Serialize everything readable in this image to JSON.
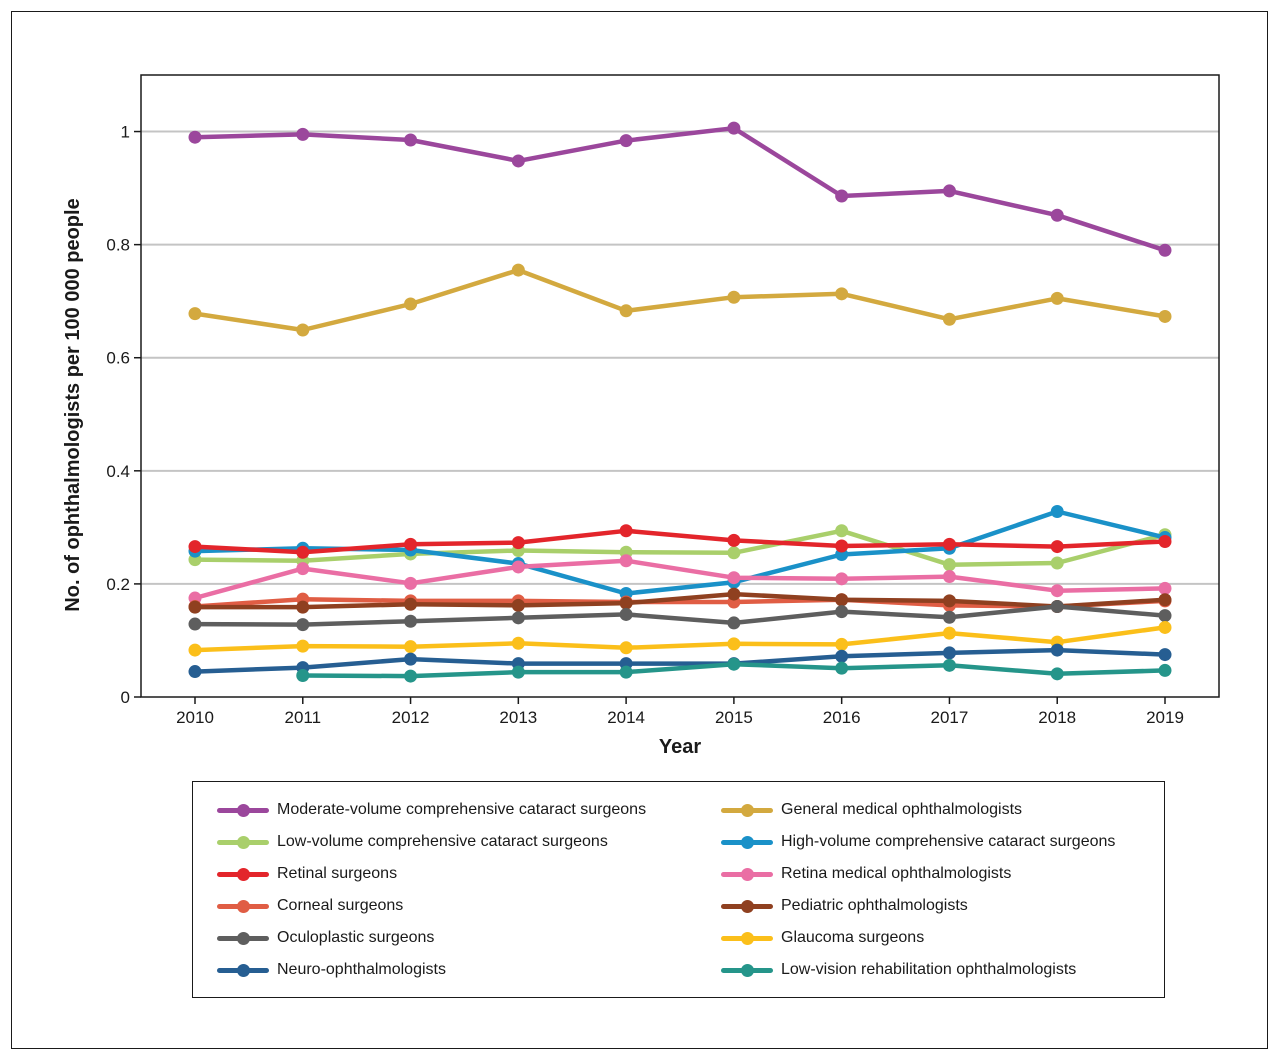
{
  "chart_data": {
    "type": "line",
    "title": "",
    "xlabel": "Year",
    "ylabel": "No. of ophthalmologists per 100 000 people",
    "ylim": [
      0,
      1.1
    ],
    "yticks": [
      0,
      0.2,
      0.4,
      0.6,
      0.8,
      1
    ],
    "ytick_labels": [
      "0",
      "0.2",
      "0.4",
      "0.6",
      "0.8",
      "1"
    ],
    "grid": true,
    "legend_position": "bottom",
    "x": [
      "2010",
      "2011",
      "2012",
      "2013",
      "2014",
      "2015",
      "2016",
      "2017",
      "2018",
      "2019"
    ],
    "series": [
      {
        "name": "Moderate-volume comprehensive cataract surgeons",
        "color": "#9b479c",
        "values": [
          0.99,
          0.995,
          0.985,
          0.948,
          0.984,
          1.006,
          0.886,
          0.895,
          0.852,
          0.79
        ]
      },
      {
        "name": "General medical ophthalmologists",
        "color": "#d3a93f",
        "values": [
          0.678,
          0.649,
          0.695,
          0.755,
          0.683,
          0.707,
          0.713,
          0.668,
          0.705,
          0.673
        ]
      },
      {
        "name": "Low-volume comprehensive cataract surgeons",
        "color": "#a9cf6b",
        "values": [
          0.243,
          0.241,
          0.253,
          0.259,
          0.256,
          0.255,
          0.294,
          0.234,
          0.237,
          0.287
        ]
      },
      {
        "name": "High-volume comprehensive cataract surgeons",
        "color": "#1a91c8",
        "values": [
          0.258,
          0.263,
          0.26,
          0.236,
          0.183,
          0.203,
          0.252,
          0.263,
          0.328,
          0.282
        ]
      },
      {
        "name": "Retinal surgeons",
        "color": "#e3252b",
        "values": [
          0.266,
          0.256,
          0.27,
          0.273,
          0.294,
          0.277,
          0.267,
          0.27,
          0.266,
          0.275
        ]
      },
      {
        "name": "Retina medical ophthalmologists",
        "color": "#ea6ea4",
        "values": [
          0.175,
          0.227,
          0.201,
          0.23,
          0.241,
          0.211,
          0.209,
          0.213,
          0.188,
          0.192
        ]
      },
      {
        "name": "Corneal surgeons",
        "color": "#e05d44",
        "values": [
          0.16,
          0.173,
          0.17,
          0.17,
          0.168,
          0.168,
          0.172,
          0.162,
          0.16,
          0.17
        ]
      },
      {
        "name": "Pediatric ophthalmologists",
        "color": "#8f4020",
        "values": [
          0.159,
          0.159,
          0.164,
          0.162,
          0.166,
          0.182,
          0.172,
          0.17,
          0.16,
          0.172
        ]
      },
      {
        "name": "Oculoplastic surgeons",
        "color": "#5e5e5e",
        "values": [
          0.129,
          0.128,
          0.134,
          0.14,
          0.146,
          0.131,
          0.151,
          0.141,
          0.16,
          0.144
        ]
      },
      {
        "name": "Glaucoma surgeons",
        "color": "#fbbf1a",
        "values": [
          0.083,
          0.09,
          0.089,
          0.095,
          0.087,
          0.094,
          0.093,
          0.113,
          0.097,
          0.123
        ]
      },
      {
        "name": "Neuro-ophthalmologists",
        "color": "#265e92",
        "values": [
          0.045,
          0.052,
          0.067,
          0.059,
          0.059,
          0.059,
          0.072,
          0.078,
          0.083,
          0.075
        ]
      },
      {
        "name": "Low-vision rehabilitation ophthalmologists",
        "color": "#25958a",
        "values": [
          null,
          0.038,
          0.037,
          0.044,
          0.044,
          0.058,
          0.051,
          0.056,
          0.041,
          0.047
        ]
      }
    ]
  }
}
